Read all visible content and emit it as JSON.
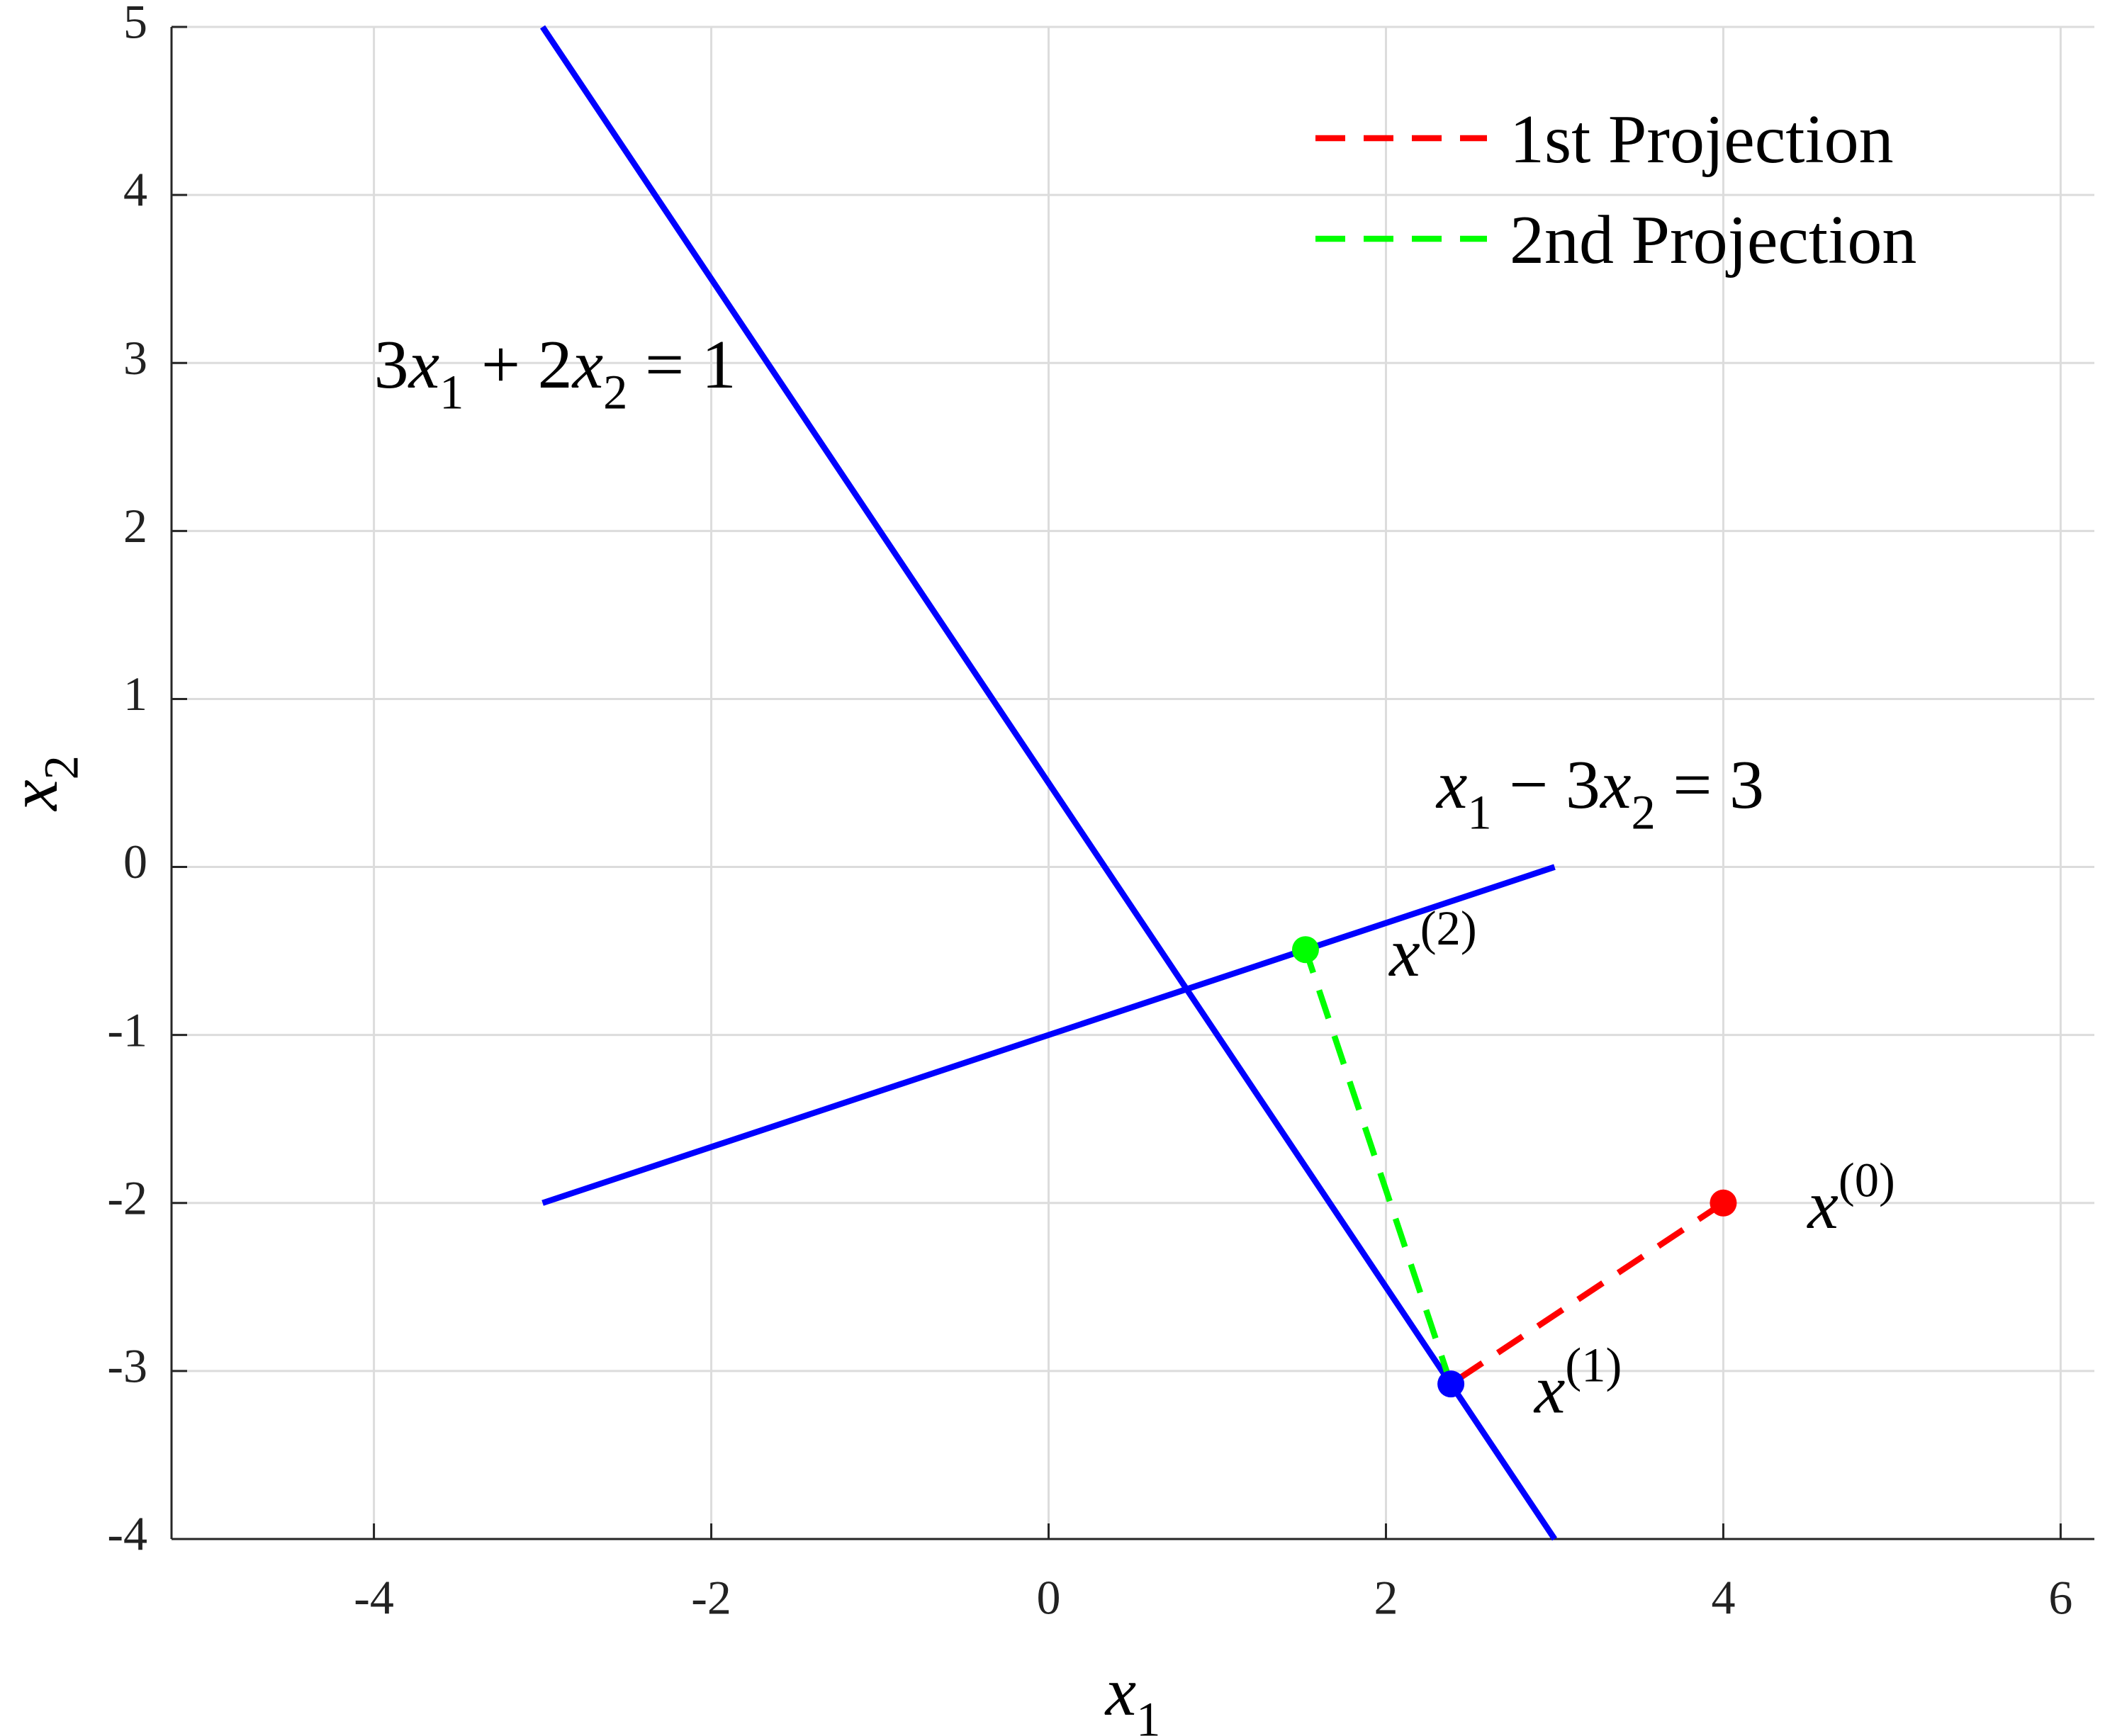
{
  "chart_data": {
    "type": "line",
    "xlabel": [
      {
        "text": "x"
      },
      {
        "text": "1",
        "shift": "sub"
      }
    ],
    "ylabel": [
      {
        "text": "x"
      },
      {
        "text": "2",
        "shift": "sub"
      }
    ],
    "xlim": [
      -5.2,
      6.2
    ],
    "ylim": [
      -4,
      5
    ],
    "xticks": [
      -4,
      -2,
      0,
      2,
      4,
      6
    ],
    "yticks": [
      -4,
      -3,
      -2,
      -1,
      0,
      1,
      2,
      3,
      4,
      5
    ],
    "grid": true,
    "legend": "upper right",
    "lines": [
      {
        "color": "#0000ff",
        "x": [
          -3,
          3
        ],
        "y": [
          5,
          -4
        ]
      },
      {
        "color": "#0000ff",
        "x": [
          -3,
          3
        ],
        "y": [
          -2,
          0
        ]
      }
    ],
    "series": [
      {
        "name": "1st Projection",
        "color": "#ff0000",
        "dashed": true,
        "x": [
          4,
          2.385
        ],
        "values": [
          -2,
          -3.077
        ]
      },
      {
        "name": "2nd Projection",
        "color": "#00ff00",
        "dashed": true,
        "x": [
          2.385,
          1.523
        ],
        "values": [
          -3.077,
          -0.492
        ]
      }
    ],
    "points": [
      {
        "x": 4,
        "y": -2,
        "color": "#ff0000"
      },
      {
        "x": 2.385,
        "y": -3.077,
        "color": "#0000ff"
      },
      {
        "x": 1.523,
        "y": -0.492,
        "color": "#00ff00"
      }
    ],
    "annotations": [
      [
        {
          "text": "3"
        },
        {
          "text": "x"
        },
        {
          "text": "1",
          "shift": "sub"
        },
        {
          "text": " + 2"
        },
        {
          "text": "x"
        },
        {
          "text": "2",
          "shift": "sub"
        },
        {
          "text": " = 1"
        }
      ],
      [
        {
          "text": "x"
        },
        {
          "text": "1",
          "shift": "sub"
        },
        {
          "text": " − 3"
        },
        {
          "text": "x"
        },
        {
          "text": "2",
          "shift": "sub"
        },
        {
          "text": " = 3"
        }
      ],
      [
        {
          "text": "x"
        },
        {
          "text": "(0)",
          "shift": "sup"
        }
      ],
      [
        {
          "text": "x"
        },
        {
          "text": "(1)",
          "shift": "sup"
        }
      ],
      [
        {
          "text": "x"
        },
        {
          "text": "(2)",
          "shift": "sup"
        }
      ]
    ]
  }
}
